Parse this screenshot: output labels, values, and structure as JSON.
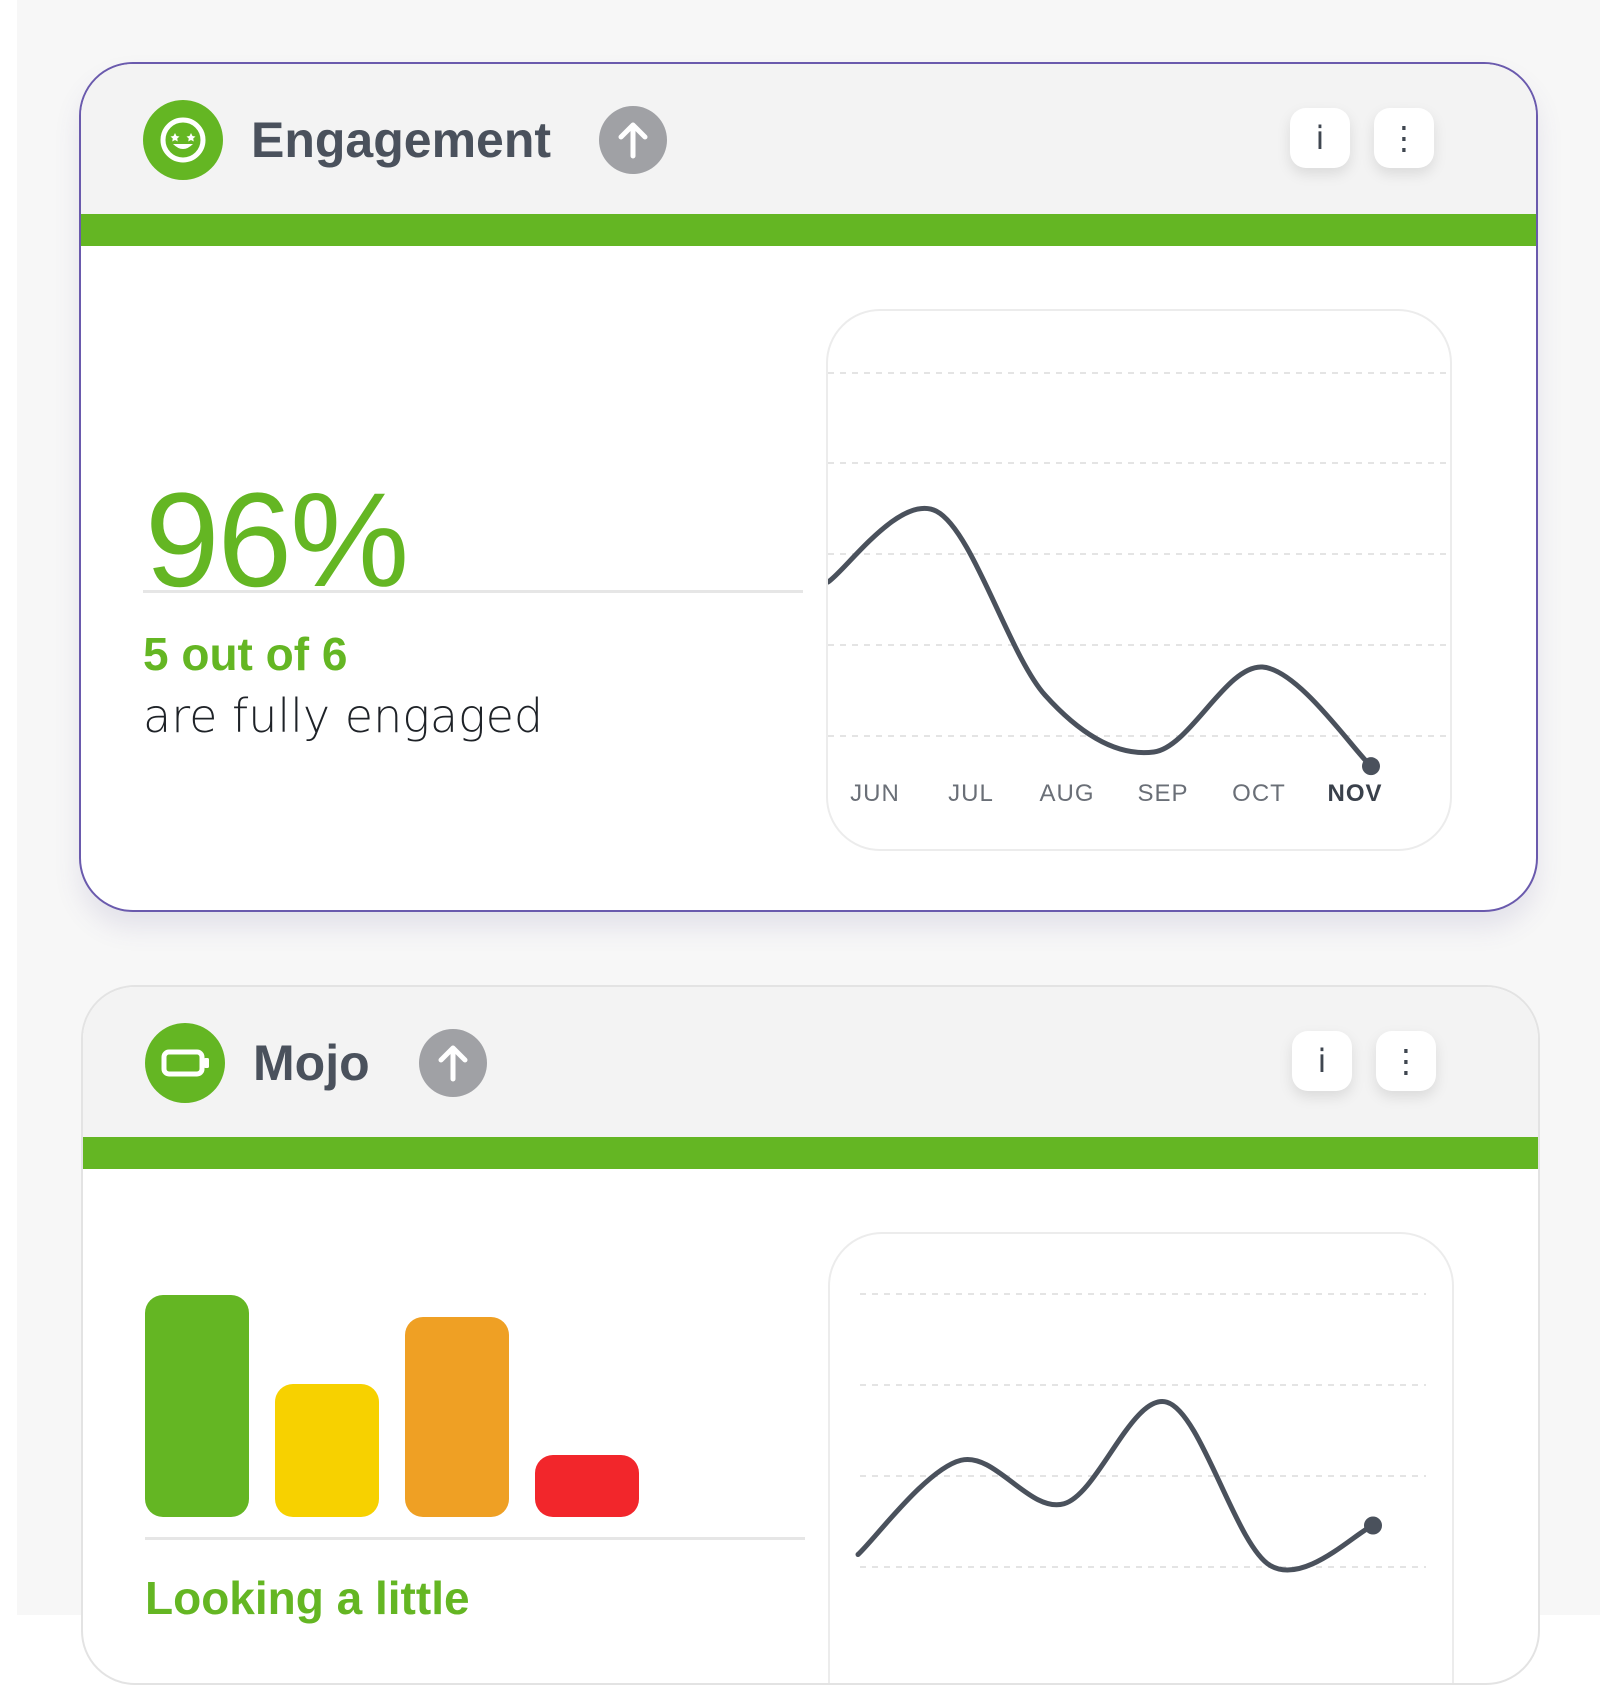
{
  "cards": {
    "engagement": {
      "title": "Engagement",
      "value": "96%",
      "highlight": "5 out of 6",
      "description": "are fully engaged",
      "icon": "smiley-star-eyes-icon",
      "trend_icon": "arrow-up-icon",
      "info_label": "i",
      "menu_label": "⋮"
    },
    "mojo": {
      "title": "Mojo",
      "highlight": "Looking a little",
      "icon": "battery-icon",
      "trend_icon": "arrow-up-icon",
      "info_label": "i",
      "menu_label": "⋮",
      "bar_levels": [
        {
          "color": "#64b623",
          "level": 1.0
        },
        {
          "color": "#f7d100",
          "level": 0.6
        },
        {
          "color": "#efa024",
          "level": 0.9
        },
        {
          "color": "#f2262b",
          "level": 0.28
        }
      ]
    }
  },
  "colors": {
    "accent_green": "#64b623",
    "text_dark": "#4a515c",
    "line": "#4a515c",
    "badge_gray": "#a0a1a5",
    "selected_border": "#6a5aad"
  },
  "chart_data": [
    {
      "type": "line",
      "x": [
        "JUN",
        "JUL",
        "AUG",
        "SEP",
        "OCT",
        "NOV"
      ],
      "highlighted_tick": "NOV",
      "values": [
        3.7,
        4.2,
        2.9,
        2.5,
        3.1,
        2.4
      ],
      "ylim": [
        0,
        5
      ],
      "grid": "dashed horizontal",
      "xlabel": "",
      "ylabel": ""
    },
    {
      "type": "line",
      "values": [
        0.2,
        1.5,
        0.9,
        2.3,
        0.05,
        0.6
      ],
      "ylim": [
        0,
        3.2
      ],
      "grid": "dashed horizontal",
      "xlabel": "",
      "ylabel": ""
    }
  ]
}
